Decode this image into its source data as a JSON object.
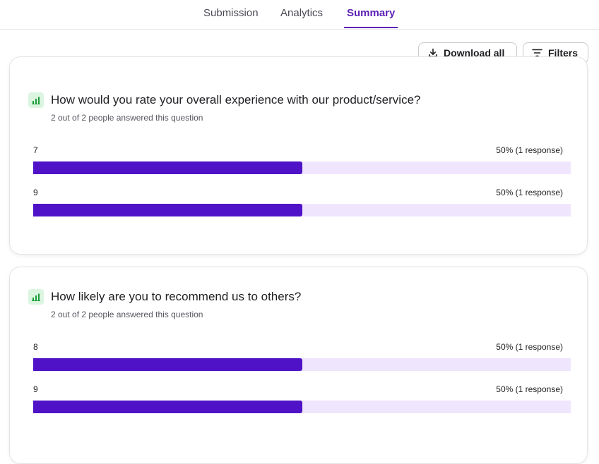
{
  "tabs": [
    {
      "label": "Submission",
      "active": false
    },
    {
      "label": "Analytics",
      "active": false
    },
    {
      "label": "Summary",
      "active": true
    }
  ],
  "toolbar": {
    "download_label": "Download all",
    "filters_label": "Filters"
  },
  "colors": {
    "accent": "#5b21b6",
    "bar_fill": "#5012c7",
    "bar_track": "#efe6fd",
    "icon_bg": "#dcf5e0",
    "icon_fg": "#1a9e3a"
  },
  "questions": [
    {
      "icon": "bar-chart-icon",
      "title": "How would you rate your overall experience with our product/service?",
      "answered": "2 out of 2 people answered this question",
      "options": [
        {
          "label": "7",
          "percent_text": "50% (1 response)",
          "fraction": 0.5
        },
        {
          "label": "9",
          "percent_text": "50% (1 response)",
          "fraction": 0.5
        }
      ]
    },
    {
      "icon": "bar-chart-icon",
      "title": "How likely are you to recommend us to others?",
      "answered": "2 out of 2 people answered this question",
      "options": [
        {
          "label": "8",
          "percent_text": "50% (1 response)",
          "fraction": 0.5
        },
        {
          "label": "9",
          "percent_text": "50% (1 response)",
          "fraction": 0.5
        }
      ]
    }
  ]
}
